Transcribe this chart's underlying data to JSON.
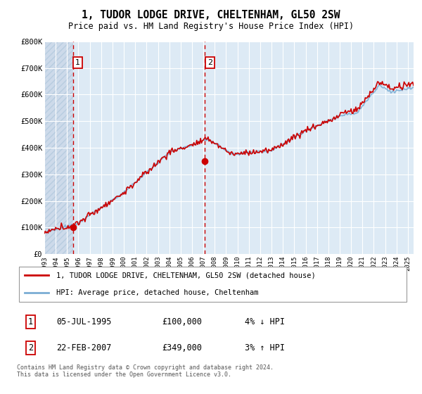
{
  "title": "1, TUDOR LODGE DRIVE, CHELTENHAM, GL50 2SW",
  "subtitle": "Price paid vs. HM Land Registry's House Price Index (HPI)",
  "ylim": [
    0,
    800000
  ],
  "yticks": [
    0,
    100000,
    200000,
    300000,
    400000,
    500000,
    600000,
    700000,
    800000
  ],
  "ytick_labels": [
    "£0",
    "£100K",
    "£200K",
    "£300K",
    "£400K",
    "£500K",
    "£600K",
    "£700K",
    "£800K"
  ],
  "hpi_color": "#7aadd4",
  "price_color": "#cc0000",
  "purchase1_date": 1995.53,
  "purchase1_price": 100000,
  "purchase1_label": "1",
  "purchase2_date": 2007.14,
  "purchase2_price": 349000,
  "purchase2_label": "2",
  "legend_price_label": "1, TUDOR LODGE DRIVE, CHELTENHAM, GL50 2SW (detached house)",
  "legend_hpi_label": "HPI: Average price, detached house, Cheltenham",
  "table_row1": [
    "1",
    "05-JUL-1995",
    "£100,000",
    "4% ↓ HPI"
  ],
  "table_row2": [
    "2",
    "22-FEB-2007",
    "£349,000",
    "3% ↑ HPI"
  ],
  "footnote": "Contains HM Land Registry data © Crown copyright and database right 2024.\nThis data is licensed under the Open Government Licence v3.0.",
  "bg_hatch_color": "#c5d8ec",
  "bg_base_color": "#ddeeff",
  "bg_right_color": "#e8f0f8",
  "grid_color": "#ffffff",
  "xlim_start": 1993,
  "xlim_end": 2025.5
}
